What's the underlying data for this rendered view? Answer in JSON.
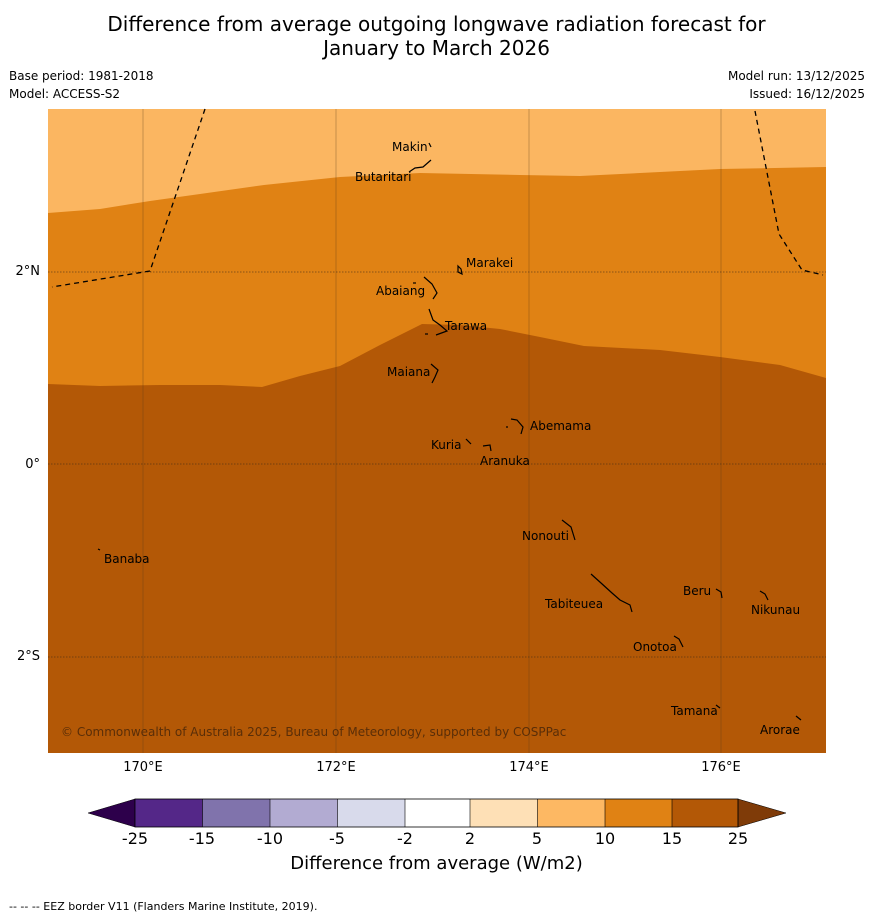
{
  "title": {
    "line1": "Difference from average outgoing longwave radiation forecast for",
    "line2": "January to March 2026"
  },
  "meta": {
    "base_period": "Base period: 1981-2018",
    "model": "Model: ACCESS-S2",
    "model_run": "Model run: 13/12/2025",
    "issued": "Issued: 16/12/2025"
  },
  "map": {
    "lat_labels": [
      "2°N",
      "0°",
      "2°S"
    ],
    "lon_labels": [
      "170°E",
      "172°E",
      "174°E",
      "176°E"
    ],
    "places": [
      {
        "name": "Makin"
      },
      {
        "name": "Butaritari"
      },
      {
        "name": "Marakei"
      },
      {
        "name": "Abaiang"
      },
      {
        "name": "Tarawa"
      },
      {
        "name": "Maiana"
      },
      {
        "name": "Abemama"
      },
      {
        "name": "Kuria"
      },
      {
        "name": "Aranuka"
      },
      {
        "name": "Nonouti"
      },
      {
        "name": "Banaba"
      },
      {
        "name": "Beru"
      },
      {
        "name": "Nikunau"
      },
      {
        "name": "Tabiteuea"
      },
      {
        "name": "Onotoa"
      },
      {
        "name": "Tamana"
      },
      {
        "name": "Arorae"
      }
    ],
    "copyright": "© Commonwealth of Australia 2025, Bureau of Meteorology, supported by COSPPac",
    "bands": [
      {
        "range": "5 to 10",
        "color": "#fbb661"
      },
      {
        "range": "10 to 15",
        "color": "#e08214"
      },
      {
        "range": "15 to 25",
        "color": "#b35806"
      }
    ]
  },
  "colorbar": {
    "ticks": [
      "-25",
      "-15",
      "-10",
      "-5",
      "-2",
      "2",
      "5",
      "10",
      "15",
      "25"
    ],
    "colors": [
      "#542788",
      "#8073ac",
      "#b2abd2",
      "#d8daeb",
      "#ffffff",
      "#fee0b6",
      "#fdb863",
      "#e08214",
      "#b35806"
    ],
    "under_color": "#2d004b",
    "over_color": "#7f3b08",
    "title": "Difference from average (W/m2)"
  },
  "footnote": "--  --  -- EEZ border V11 (Flanders Marine Institute, 2019)."
}
